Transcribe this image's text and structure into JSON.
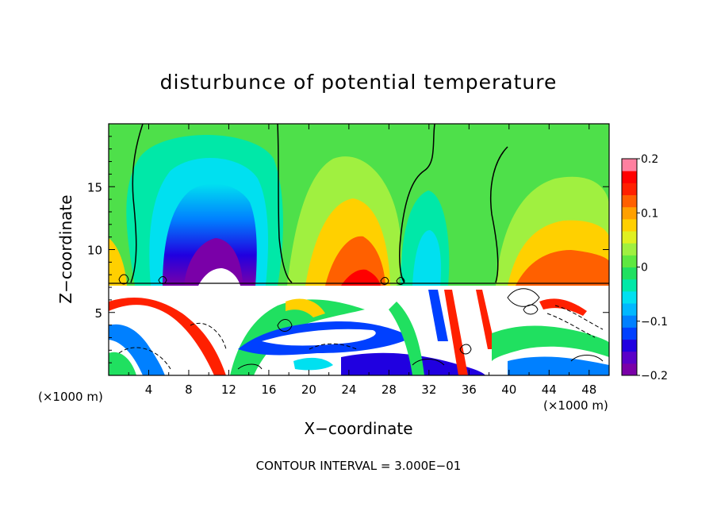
{
  "chart_data": {
    "type": "heatmap",
    "title": "disturbunce of potential temperature",
    "xlabel": "X−coordinate",
    "ylabel": "Z−coordinate",
    "x_unit": "(×1000 m)",
    "z_unit": "(×1000 m)",
    "xlim": [
      0,
      50
    ],
    "ylim": [
      0,
      20
    ],
    "x_ticks": [
      "4",
      "8",
      "12",
      "16",
      "20",
      "24",
      "28",
      "32",
      "36",
      "40",
      "44",
      "48"
    ],
    "y_ticks": [
      "5",
      "10",
      "15"
    ],
    "colorbar": {
      "range": [
        -0.2,
        0.2
      ],
      "tick_labels": [
        "0.2",
        "0.1",
        "0",
        "−0.1",
        "−0.2"
      ],
      "tick_values": [
        0.2,
        0.1,
        0,
        -0.1,
        -0.2
      ],
      "colors": [
        "#7a00a8",
        "#5a00c8",
        "#2000e0",
        "#0040ff",
        "#0080ff",
        "#00b8ff",
        "#00e0f0",
        "#00e8a8",
        "#20e060",
        "#5ee840",
        "#a0f040",
        "#e0f020",
        "#ffd000",
        "#ffa000",
        "#ff6000",
        "#ff2000",
        "#ff0000",
        "#ff80a0"
      ]
    },
    "features": [
      {
        "kind": "cold anomaly",
        "x_center": 11,
        "z_center": 10,
        "min_value": -0.2
      },
      {
        "kind": "warm anomaly",
        "x_center": 25,
        "z_center": 9,
        "max_value": 0.15
      },
      {
        "kind": "warm anomaly",
        "x_center": 46,
        "z_center": 9,
        "max_value": 0.15
      },
      {
        "kind": "inversion layer",
        "z": 7.3
      },
      {
        "kind": "turbulent boundary layer",
        "z_range": [
          0,
          7.3
        ]
      }
    ],
    "footer": "CONTOUR INTERVAL = 3.000E−01"
  }
}
